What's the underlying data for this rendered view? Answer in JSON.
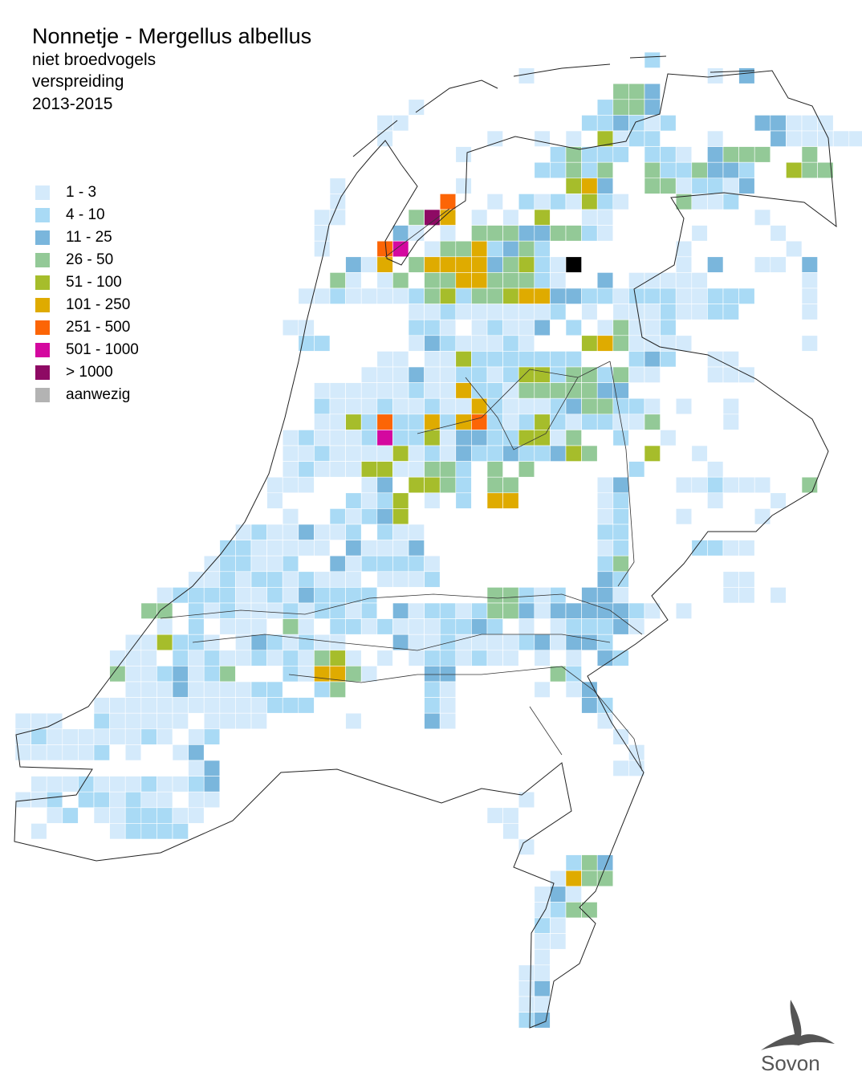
{
  "header": {
    "title": "Nonnetje - Mergellus albellus",
    "subtitle_lines": [
      "niet broedvogels",
      "verspreiding",
      "2013-2015"
    ]
  },
  "legend": {
    "items": [
      {
        "label": "1 - 3",
        "color": "#d4eafb"
      },
      {
        "label": "4 - 10",
        "color": "#a9daf5"
      },
      {
        "label": "11 - 25",
        "color": "#7ab6dc"
      },
      {
        "label": "26 - 50",
        "color": "#93c997"
      },
      {
        "label": "51 - 100",
        "color": "#a6bd2b"
      },
      {
        "label": "101 - 250",
        "color": "#dfab00"
      },
      {
        "label": "251 - 500",
        "color": "#fc6506"
      },
      {
        "label": "501 - 1000",
        "color": "#d4089f"
      },
      {
        "label": "> 1000",
        "color": "#8e0a64"
      },
      {
        "label": "aanwezig",
        "color": "#b3b3b3"
      }
    ]
  },
  "logo": {
    "text": "Sovon"
  }
}
